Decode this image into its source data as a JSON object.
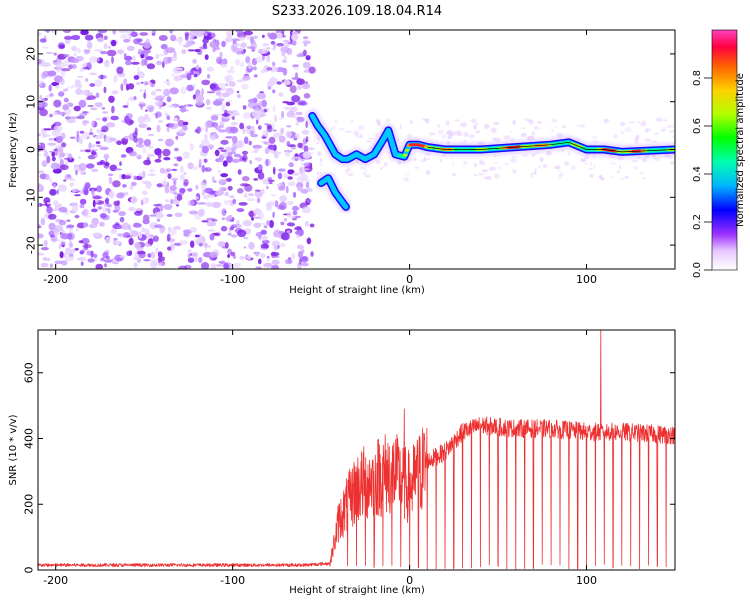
{
  "title": "S233.2026.109.18.04.R14",
  "colors": {
    "snr_line": "#ee3030",
    "scatter_fill": "#8a2be2",
    "axis": "#000000"
  },
  "chart_data": [
    {
      "type": "heatmap",
      "name": "spectrogram",
      "xlabel": "Height of straight line (km)",
      "ylabel": "Frequency (Hz)",
      "xlim": [
        -210,
        150
      ],
      "ylim": [
        -25,
        25
      ],
      "xticks": [
        -200,
        -100,
        0,
        100
      ],
      "xtick_labels": [
        "-200",
        "-100",
        "0",
        "100"
      ],
      "yticks": [
        -20,
        -10,
        0,
        10,
        20
      ],
      "ytick_labels": [
        "-20",
        "-10",
        "0",
        "10",
        "20"
      ],
      "noise_region_km": [
        -210,
        -55
      ],
      "ridge_km": [
        -55,
        150
      ],
      "ridge_trace": [
        {
          "x": -55,
          "f": 7
        },
        {
          "x": -52,
          "f": 5
        },
        {
          "x": -48,
          "f": 3
        },
        {
          "x": -45,
          "f": 1
        },
        {
          "x": -42,
          "f": -1
        },
        {
          "x": -38,
          "f": -2
        },
        {
          "x": -35,
          "f": -2
        },
        {
          "x": -30,
          "f": -1
        },
        {
          "x": -25,
          "f": -2
        },
        {
          "x": -20,
          "f": -1
        },
        {
          "x": -15,
          "f": 2
        },
        {
          "x": -12,
          "f": 4
        },
        {
          "x": -8,
          "f": -1
        },
        {
          "x": -3,
          "f": -1.5
        },
        {
          "x": 0,
          "f": 1
        },
        {
          "x": 5,
          "f": 1
        },
        {
          "x": 10,
          "f": 0.5
        },
        {
          "x": 20,
          "f": 0
        },
        {
          "x": 40,
          "f": 0
        },
        {
          "x": 60,
          "f": 0.5
        },
        {
          "x": 80,
          "f": 1
        },
        {
          "x": 90,
          "f": 1.5
        },
        {
          "x": 100,
          "f": 0
        },
        {
          "x": 110,
          "f": 0
        },
        {
          "x": 120,
          "f": -0.5
        },
        {
          "x": 150,
          "f": 0
        }
      ],
      "branch_trace": [
        {
          "x": -50,
          "f": -7
        },
        {
          "x": -46,
          "f": -6
        },
        {
          "x": -42,
          "f": -9
        },
        {
          "x": -38,
          "f": -11
        },
        {
          "x": -36,
          "f": -12
        }
      ]
    },
    {
      "type": "line",
      "name": "snr",
      "xlabel": "Height of straight line (km)",
      "ylabel": "SNR (10 * v/v)",
      "xlim": [
        -210,
        150
      ],
      "ylim": [
        0,
        730
      ],
      "xticks": [
        -200,
        -100,
        0,
        100
      ],
      "xtick_labels": [
        "-200",
        "-100",
        "0",
        "100"
      ],
      "yticks": [
        0,
        200,
        400,
        600
      ],
      "ytick_labels": [
        "0",
        "200",
        "400",
        "600"
      ],
      "envelope": [
        {
          "x": -210,
          "y": 15
        },
        {
          "x": -60,
          "y": 15
        },
        {
          "x": -45,
          "y": 20
        },
        {
          "x": -40,
          "y": 150
        },
        {
          "x": -30,
          "y": 250
        },
        {
          "x": -20,
          "y": 280
        },
        {
          "x": -10,
          "y": 300
        },
        {
          "x": 0,
          "y": 250
        },
        {
          "x": 10,
          "y": 330
        },
        {
          "x": 20,
          "y": 360
        },
        {
          "x": 30,
          "y": 420
        },
        {
          "x": 40,
          "y": 440
        },
        {
          "x": 60,
          "y": 430
        },
        {
          "x": 80,
          "y": 430
        },
        {
          "x": 100,
          "y": 420
        },
        {
          "x": 120,
          "y": 420
        },
        {
          "x": 150,
          "y": 410
        }
      ],
      "spikes_down": [
        -35,
        -30,
        -25,
        -20,
        -15,
        -10,
        -5,
        0,
        5,
        10,
        15,
        20,
        25,
        30,
        35,
        40,
        45,
        50,
        55,
        60,
        65,
        70,
        75,
        80,
        85,
        90,
        95,
        100,
        105,
        110,
        115,
        120,
        125,
        130,
        135,
        140,
        145
      ],
      "spikes_up": [
        {
          "x": -3,
          "y": 490
        },
        {
          "x": 108,
          "y": 730
        }
      ]
    }
  ],
  "colorbar": {
    "label": "Normalized spectral amplitude",
    "ticks": [
      0.0,
      0.2,
      0.4,
      0.6,
      0.8
    ],
    "tick_labels": [
      "0.0",
      "0.2",
      "0.4",
      "0.6",
      "0.8"
    ],
    "range": [
      0,
      1
    ]
  }
}
